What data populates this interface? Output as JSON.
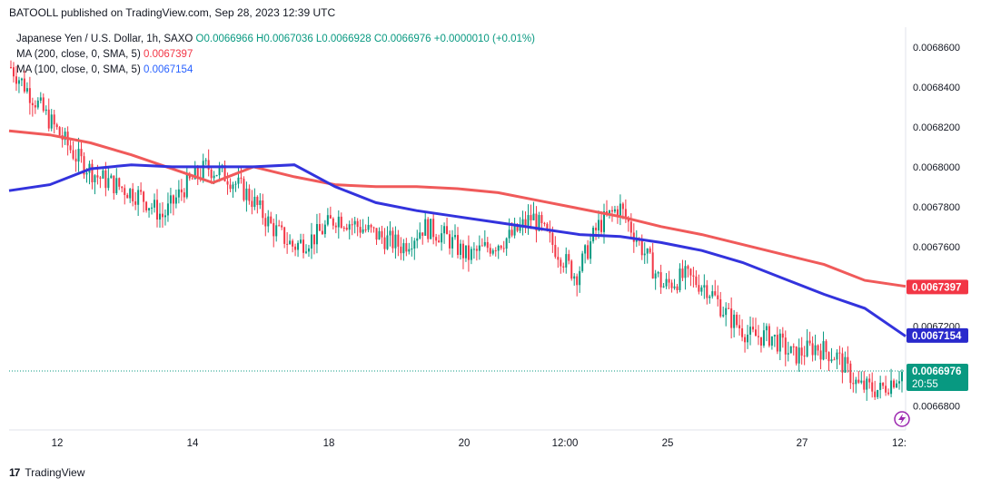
{
  "header": {
    "published_line": "BATOOLL published on TradingView.com, Sep 28, 2023 12:39 UTC"
  },
  "legend": {
    "symbol": "Japanese Yen / U.S. Dollar, 1h, SAXO",
    "ohlc": "O0.0066966 H0.0067036 L0.0066928 C0.0066976 +0.0000010 (+0.01%)",
    "ma200_label": "MA (200, close, 0, SMA, 5)",
    "ma200_value": "0.0067397",
    "ma100_label": "MA (100, close, 0, SMA, 5)",
    "ma100_value": "0.0067154"
  },
  "footer": {
    "brand": "TradingView"
  },
  "colors": {
    "up": "#089981",
    "down": "#f23645",
    "ma200": "#f05a5a",
    "ma100": "#3333dd"
  },
  "chart_data": {
    "type": "line",
    "title": "Japanese Yen / U.S. Dollar, 1h, SAXO",
    "y_ticks": [
      "0.0068600",
      "0.0068400",
      "0.0068200",
      "0.0068000",
      "0.0067800",
      "0.0067600",
      "0.0067200",
      "0.0066800"
    ],
    "ylim": [
      0.006668,
      0.00687
    ],
    "x_ticks": [
      "12",
      "14",
      "18",
      "20",
      "12:00",
      "25",
      "27",
      "12:"
    ],
    "series": [
      {
        "name": "MA (200, close, 0, SMA, 5)",
        "values": [
          0.006818,
          0.006816,
          0.006812,
          0.006806,
          0.006799,
          0.006792,
          0.0068,
          0.006795,
          0.006791,
          0.00679,
          0.00679,
          0.006789,
          0.006787,
          0.006783,
          0.006779,
          0.006775,
          0.00677,
          0.006766,
          0.006761,
          0.006756,
          0.006751,
          0.006743,
          0.00674
        ]
      },
      {
        "name": "MA (100, close, 0, SMA, 5)",
        "values": [
          0.006788,
          0.006791,
          0.006799,
          0.006801,
          0.0068,
          0.0068,
          0.0068,
          0.006801,
          0.00679,
          0.006782,
          0.006778,
          0.006775,
          0.006772,
          0.006769,
          0.006766,
          0.006765,
          0.006762,
          0.006758,
          0.006752,
          0.006744,
          0.006736,
          0.006729,
          0.006715
        ]
      }
    ],
    "price_samples": [
      0.00685,
      0.006835,
      0.00682,
      0.006805,
      0.006795,
      0.00679,
      0.006785,
      0.006775,
      0.00679,
      0.0068,
      0.006795,
      0.006785,
      0.00677,
      0.00676,
      0.006765,
      0.006775,
      0.00677,
      0.006765,
      0.00676,
      0.00677,
      0.006765,
      0.006755,
      0.00676,
      0.006765,
      0.006775,
      0.00676,
      0.006745,
      0.00677,
      0.00678,
      0.00676,
      0.00674,
      0.006745,
      0.00674,
      0.006725,
      0.006715,
      0.006715,
      0.006705,
      0.00671,
      0.006705,
      0.00669,
      0.006688,
      0.006697
    ],
    "last_price": "0.0066976",
    "countdown": "20:55",
    "ma200_badge": "0.0067397",
    "ma100_badge": "0.0067154"
  }
}
